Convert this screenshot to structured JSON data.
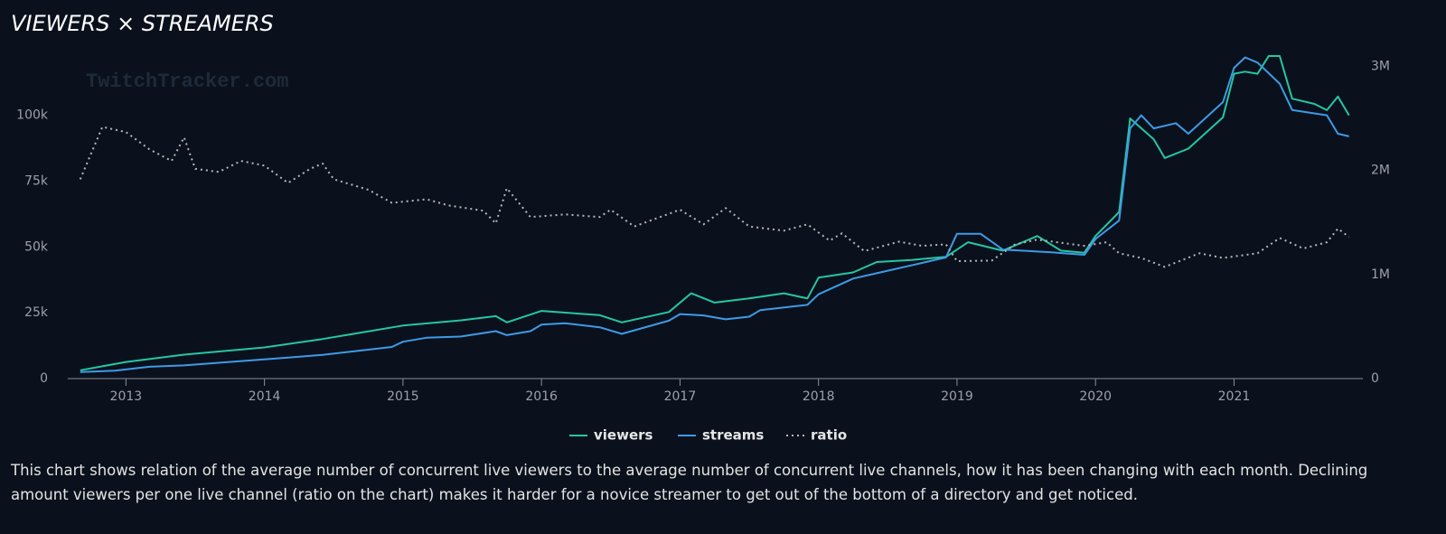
{
  "chart_data": {
    "type": "line",
    "title": "VIEWERS × STREAMERS",
    "watermark": "TwitchTracker.com",
    "description": "This chart shows relation of the average number of concurrent live viewers to the average number of concurrent live channels, how it has been changing with each month. Declining amount viewers per one live channel (ratio on the chart) makes it harder for a novice streamer to get out of the bottom of a directory and get noticed.",
    "xlim": [
      2012.58,
      2021.93
    ],
    "xticks": [
      2013,
      2014,
      2015,
      2016,
      2017,
      2018,
      2019,
      2020,
      2021
    ],
    "ylim": [
      0,
      122500
    ],
    "yticks": [
      0,
      {
        "value": 25000,
        "label": "25k"
      },
      {
        "value": 50000,
        "label": "50k"
      },
      {
        "value": 75000,
        "label": "75k"
      },
      {
        "value": 100000,
        "label": "100k"
      }
    ],
    "y2lim": [
      0,
      3100000
    ],
    "y2ticks": [
      0,
      {
        "value": 1000000,
        "label": "1M"
      },
      {
        "value": 2000000,
        "label": "2M"
      },
      {
        "value": 3000000,
        "label": "3M"
      }
    ],
    "y3lim": [
      0,
      61.5
    ],
    "grid": false,
    "legend": "bottom",
    "series": [
      {
        "name": "viewers",
        "color": "#26c6a2",
        "axis": "y2",
        "x": [
          2012.67,
          2013.0,
          2013.42,
          2014.0,
          2014.42,
          2015.0,
          2015.42,
          2015.67,
          2015.75,
          2016.0,
          2016.42,
          2016.58,
          2016.92,
          2017.08,
          2017.25,
          2017.5,
          2017.75,
          2017.92,
          2018.0,
          2018.25,
          2018.42,
          2018.67,
          2018.92,
          2019.08,
          2019.33,
          2019.58,
          2019.75,
          2019.92,
          2020.0,
          2020.17,
          2020.25,
          2020.42,
          2020.5,
          2020.67,
          2020.92,
          2021.0,
          2021.08,
          2021.17,
          2021.25,
          2021.33,
          2021.42,
          2021.58,
          2021.67,
          2021.75,
          2021.83
        ],
        "values": [
          80000,
          160000,
          230000,
          300000,
          380000,
          510000,
          560000,
          600000,
          540000,
          650000,
          610000,
          540000,
          640000,
          820000,
          730000,
          770000,
          820000,
          770000,
          970000,
          1020000,
          1120000,
          1140000,
          1170000,
          1310000,
          1230000,
          1370000,
          1230000,
          1210000,
          1370000,
          1600000,
          2500000,
          2300000,
          2120000,
          2210000,
          2510000,
          2930000,
          2950000,
          2930000,
          3100000,
          3100000,
          2690000,
          2640000,
          2580000,
          2710000,
          2530000
        ]
      },
      {
        "name": "streams",
        "color": "#3f9ae6",
        "x": [
          2012.67,
          2012.92,
          2013.17,
          2013.42,
          2013.67,
          2013.92,
          2014.17,
          2014.42,
          2014.67,
          2014.92,
          2015.0,
          2015.17,
          2015.42,
          2015.67,
          2015.75,
          2015.92,
          2016.0,
          2016.17,
          2016.42,
          2016.58,
          2016.92,
          2017.0,
          2017.17,
          2017.33,
          2017.5,
          2017.58,
          2017.92,
          2018.0,
          2018.25,
          2018.42,
          2018.67,
          2018.92,
          2019.0,
          2019.17,
          2019.33,
          2019.67,
          2019.92,
          2020.0,
          2020.17,
          2020.25,
          2020.33,
          2020.42,
          2020.58,
          2020.67,
          2020.92,
          2021.0,
          2021.08,
          2021.17,
          2021.33,
          2021.42,
          2021.67,
          2021.75,
          2021.83
        ],
        "values": [
          2500,
          3000,
          4500,
          5000,
          6000,
          7000,
          8000,
          9000,
          10500,
          12000,
          14000,
          15500,
          16000,
          18000,
          16500,
          18000,
          20500,
          21000,
          19500,
          17000,
          22000,
          24500,
          24000,
          22500,
          23500,
          26000,
          28000,
          32000,
          38000,
          40000,
          43000,
          46000,
          55000,
          55000,
          49000,
          48000,
          47000,
          53000,
          60000,
          95000,
          100000,
          95000,
          97000,
          93000,
          105000,
          118000,
          122000,
          120000,
          112000,
          102000,
          100000,
          93000,
          92000
        ]
      },
      {
        "name": "ratio",
        "color": "#b8b8b8",
        "axis": "y3",
        "dash": "2 4",
        "x": [
          2012.67,
          2012.83,
          2013.0,
          2013.17,
          2013.33,
          2013.42,
          2013.5,
          2013.67,
          2013.83,
          2014.0,
          2014.17,
          2014.33,
          2014.42,
          2014.5,
          2014.75,
          2014.92,
          2015.17,
          2015.33,
          2015.58,
          2015.67,
          2015.75,
          2015.92,
          2016.17,
          2016.42,
          2016.5,
          2016.67,
          2017.0,
          2017.17,
          2017.33,
          2017.5,
          2017.75,
          2017.92,
          2018.08,
          2018.17,
          2018.33,
          2018.58,
          2018.75,
          2018.92,
          2019.0,
          2019.25,
          2019.42,
          2019.58,
          2019.92,
          2020.08,
          2020.17,
          2020.33,
          2020.5,
          2020.75,
          2020.92,
          2021.17,
          2021.33,
          2021.5,
          2021.67,
          2021.75,
          2021.83
        ],
        "values": [
          38,
          48,
          47,
          43.7,
          41.5,
          46,
          40,
          39.4,
          41.5,
          40.6,
          37.3,
          40,
          41,
          38,
          36,
          33.5,
          34.2,
          33,
          32,
          29.6,
          36.3,
          30.8,
          31.3,
          30.8,
          32.2,
          29,
          32.2,
          29.4,
          32.5,
          29,
          28.2,
          29.4,
          26.3,
          27.7,
          24.3,
          26.1,
          25.3,
          25.6,
          22.4,
          22.5,
          25.6,
          26.5,
          25.3,
          26,
          23.9,
          23,
          21.3,
          23.9,
          23,
          23.9,
          26.8,
          24.8,
          26,
          28.6,
          27
        ]
      }
    ]
  }
}
